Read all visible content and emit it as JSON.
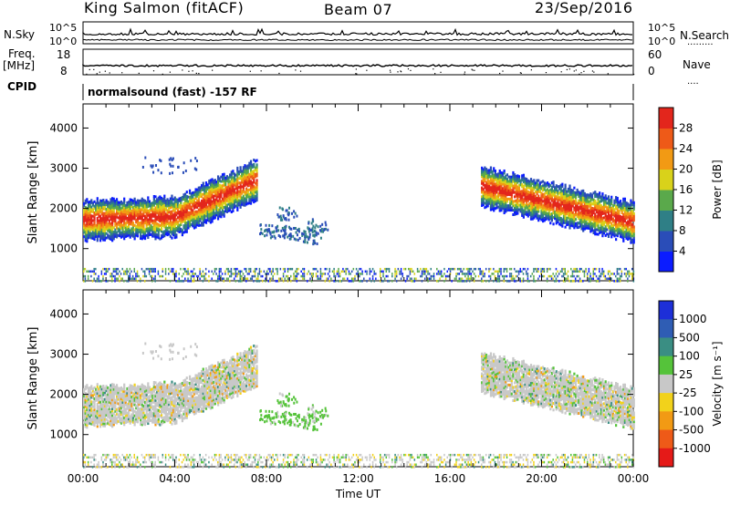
{
  "header": {
    "radar": "King Salmon (fitACF)",
    "beam": "Beam 07",
    "date": "23/Sep/2016"
  },
  "strips": {
    "nsky_label": "N.Sky",
    "nsearch_label": "N.Search",
    "nsky_ticks": [
      "10^5",
      "10^0"
    ],
    "nsearch_ticks": [
      "10^5",
      "10^0"
    ],
    "freq_label": "Freq.",
    "freq_unit": "[MHz]",
    "freq_ticks": [
      "18",
      "8"
    ],
    "nave_label": "Nave",
    "nave_ticks": [
      "60",
      "0"
    ],
    "cpid_label": "CPID",
    "cpid_value": "normalsound (fast) -157 RF"
  },
  "chart_data": [
    {
      "type": "heatmap",
      "name": "Power",
      "ylabel": "Slant Range [km]",
      "xlabel": "",
      "ylim": [
        200,
        4600
      ],
      "yticks": [
        "1000",
        "2000",
        "3000",
        "4000"
      ],
      "colorbar": {
        "label": "Power [dB]",
        "ticks": [
          "4",
          "8",
          "12",
          "16",
          "20",
          "24",
          "28"
        ],
        "colors": [
          "#0b1cff",
          "#2a4db8",
          "#2f7f86",
          "#5aa94b",
          "#d9d21a",
          "#f29a14",
          "#ee5a18",
          "#e3261c"
        ]
      },
      "features": [
        {
          "desc": "main echo band",
          "t_start": "00:00",
          "t_end": "07:30",
          "range_km": [
            1400,
            2900
          ]
        },
        {
          "desc": "evening echo band",
          "t_start": "17:30",
          "t_end": "24:00",
          "range_km": [
            1300,
            2800
          ]
        },
        {
          "desc": "near-range scatter",
          "t_start": "00:00",
          "t_end": "24:00",
          "range_km": [
            200,
            500
          ]
        }
      ]
    },
    {
      "type": "heatmap",
      "name": "Velocity",
      "ylabel": "Slant Range [km]",
      "xlabel": "Time UT",
      "ylim": [
        200,
        4600
      ],
      "yticks": [
        "1000",
        "2000",
        "3000",
        "4000"
      ],
      "xticks": [
        "00:00",
        "04:00",
        "08:00",
        "12:00",
        "16:00",
        "20:00",
        "00:00"
      ],
      "colorbar": {
        "label": "Velocity [m s⁻¹]",
        "ticks": [
          "1000",
          "500",
          "100",
          "25",
          "-25",
          "-100",
          "-500",
          "-1000"
        ],
        "colors": [
          "#1d2fd8",
          "#2f5db4",
          "#3a8e83",
          "#55c33a",
          "#c8c8c8",
          "#f2d21b",
          "#f29a14",
          "#ee5a18",
          "#e51a18"
        ]
      }
    }
  ]
}
